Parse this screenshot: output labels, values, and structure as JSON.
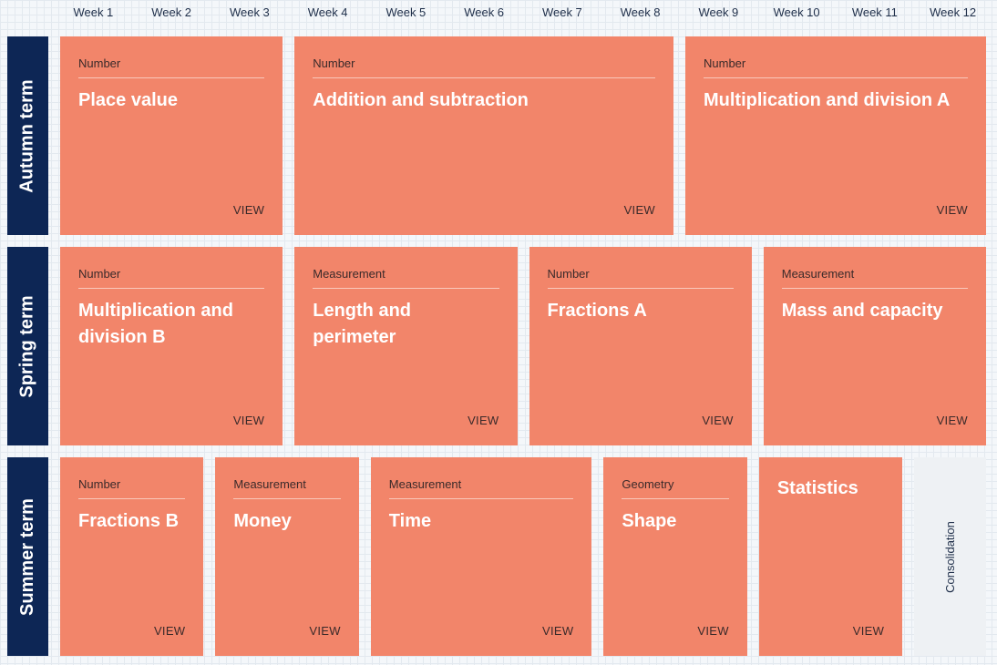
{
  "weeks": [
    "Week 1",
    "Week 2",
    "Week 3",
    "Week 4",
    "Week 5",
    "Week 6",
    "Week 7",
    "Week 8",
    "Week 9",
    "Week 10",
    "Week 11",
    "Week 12"
  ],
  "view_label": "VIEW",
  "colors": {
    "block": "#f2856a",
    "term_label": "#0d2655",
    "consolidation": "#eef1f4"
  },
  "terms": [
    {
      "name": "Autumn term",
      "blocks": [
        {
          "category": "Number",
          "title": "Place value",
          "weeks": 3
        },
        {
          "category": "Number",
          "title": "Addition and subtraction",
          "weeks": 5
        },
        {
          "category": "Number",
          "title": "Multiplication and division A",
          "weeks": 4
        }
      ]
    },
    {
      "name": "Spring term",
      "blocks": [
        {
          "category": "Number",
          "title": "Multiplication and division B",
          "weeks": 3
        },
        {
          "category": "Measurement",
          "title": "Length and perimeter",
          "weeks": 3
        },
        {
          "category": "Number",
          "title": "Fractions A",
          "weeks": 3
        },
        {
          "category": "Measurement",
          "title": "Mass and capacity",
          "weeks": 3
        }
      ]
    },
    {
      "name": "Summer term",
      "blocks": [
        {
          "category": "Number",
          "title": "Fractions B",
          "weeks": 2
        },
        {
          "category": "Measurement",
          "title": "Money",
          "weeks": 2
        },
        {
          "category": "Measurement",
          "title": "Time",
          "weeks": 3
        },
        {
          "category": "Geometry",
          "title": "Shape",
          "weeks": 2
        },
        {
          "category": "",
          "title": "Statistics",
          "weeks": 2
        }
      ],
      "consolidation": {
        "label": "Consolidation",
        "weeks": 1
      }
    }
  ]
}
